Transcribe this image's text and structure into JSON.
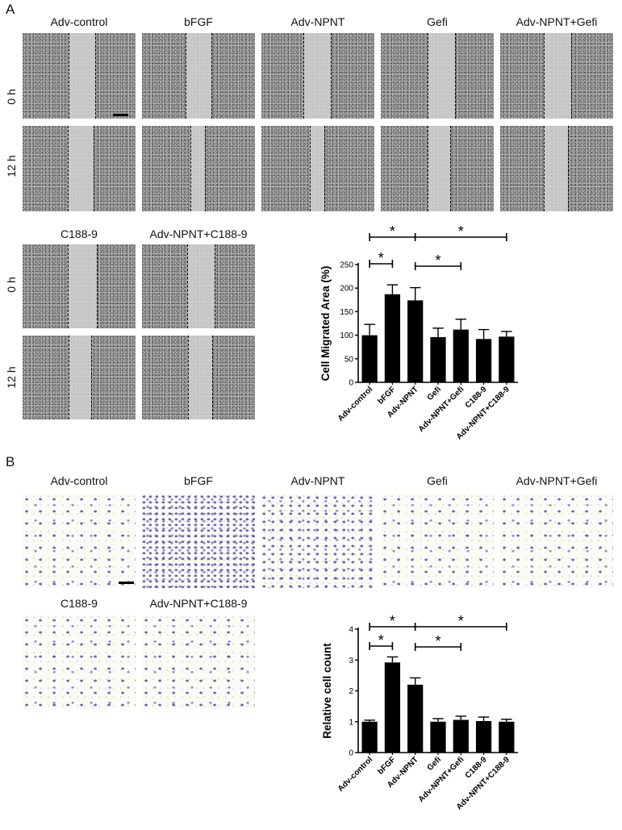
{
  "panel_a": {
    "letter": "A",
    "row_labels": [
      "0 h",
      "12 h"
    ],
    "columns_top": [
      "Adv-control",
      "bFGF",
      "Adv-NPNT",
      "Gefi",
      "Adv-NPNT+Gefi"
    ],
    "columns_bottom": [
      "C188-9",
      "Adv-NPNT+C188-9"
    ]
  },
  "panel_b": {
    "letter": "B",
    "columns_top": [
      "Adv-control",
      "bFGF",
      "Adv-NPNT",
      "Gefi",
      "Adv-NPNT+Gefi"
    ],
    "columns_bottom": [
      "C188-9",
      "Adv-NPNT+C188-9"
    ]
  },
  "chart_data": [
    {
      "type": "bar",
      "ylabel": "Cell Migrated Area (%)",
      "categories": [
        "Adv-control",
        "bFGF",
        "Adv-NPNT",
        "Gefi",
        "Adv-NPNT+Gefi",
        "C188-9",
        "Adv-NPNT+C188-9"
      ],
      "values": [
        100,
        187,
        174,
        96,
        112,
        92,
        97
      ],
      "errors": [
        23,
        20,
        27,
        19,
        22,
        20,
        11
      ],
      "ylim": [
        0,
        250
      ],
      "yticks": [
        0,
        50,
        100,
        150,
        200,
        250
      ],
      "color": "#000000",
      "significance": [
        {
          "from": "Adv-control",
          "to": "Adv-NPNT",
          "label": "*"
        },
        {
          "from": "Adv-NPNT",
          "to": "Adv-NPNT+C188-9",
          "label": "*"
        },
        {
          "from": "Adv-control",
          "to": "bFGF",
          "label": "*"
        },
        {
          "from": "Adv-NPNT",
          "to": "Adv-NPNT+Gefi",
          "label": "*"
        }
      ]
    },
    {
      "type": "bar",
      "ylabel": "Relative cell count",
      "categories": [
        "Adv-control",
        "bFGF",
        "Adv-NPNT",
        "Gefi",
        "Adv-NPNT+Gefi",
        "C188-9",
        "Adv-NPNT+C188-9"
      ],
      "values": [
        1.0,
        2.92,
        2.2,
        1.0,
        1.06,
        1.02,
        1.0
      ],
      "errors": [
        0.05,
        0.18,
        0.22,
        0.1,
        0.12,
        0.13,
        0.08
      ],
      "ylim": [
        0,
        4
      ],
      "yticks": [
        0,
        1,
        2,
        3,
        4
      ],
      "color": "#000000",
      "significance": [
        {
          "from": "Adv-control",
          "to": "Adv-NPNT",
          "label": "*"
        },
        {
          "from": "Adv-NPNT",
          "to": "Adv-NPNT+C188-9",
          "label": "*"
        },
        {
          "from": "Adv-control",
          "to": "bFGF",
          "label": "*"
        },
        {
          "from": "Adv-NPNT",
          "to": "Adv-NPNT+Gefi",
          "label": "*"
        }
      ]
    }
  ]
}
